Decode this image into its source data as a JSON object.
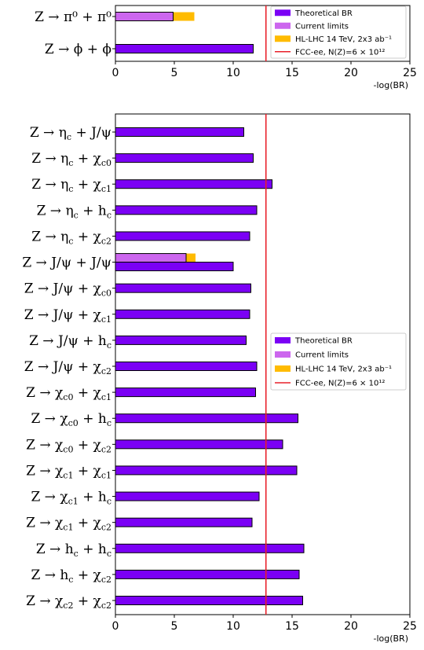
{
  "colors": {
    "theoretical": "#7b00f5",
    "current": "#cc66ee",
    "hl_lhc": "#ffbb00",
    "fcc": "#e8202a"
  },
  "chart_data": [
    {
      "type": "bar",
      "orientation": "horizontal",
      "xlabel": "-log(BR)",
      "xlim": [
        0,
        25
      ],
      "xticks": [
        0,
        5,
        10,
        15,
        20,
        25
      ],
      "fcc_line": 12.78,
      "legend": {
        "placement": "top-right",
        "items": [
          {
            "key": "theoretical",
            "label": "Theoretical BR"
          },
          {
            "key": "current",
            "label": "Current limits"
          },
          {
            "key": "hl_lhc",
            "label": "HL-LHC 14 TeV, 2x3 ab⁻¹"
          },
          {
            "key": "fcc",
            "label": "FCC-ee, N(Z)=6 × 10¹²"
          }
        ]
      },
      "categories": [
        "Z → π⁰ + π⁰",
        "Z → ϕ + ϕ"
      ],
      "series": [
        {
          "key": "theoretical",
          "values": [
            null,
            11.7
          ]
        },
        {
          "key": "current",
          "values": [
            4.9,
            null
          ]
        },
        {
          "key": "hl_lhc",
          "values": [
            6.7,
            null
          ]
        }
      ]
    },
    {
      "type": "bar",
      "orientation": "horizontal",
      "xlabel": "-log(BR)",
      "xlim": [
        0,
        25
      ],
      "xticks": [
        0,
        5,
        10,
        15,
        20,
        25
      ],
      "fcc_line": 12.78,
      "legend": {
        "placement": "center-right",
        "items": [
          {
            "key": "theoretical",
            "label": "Theoretical BR"
          },
          {
            "key": "current",
            "label": "Current limits"
          },
          {
            "key": "hl_lhc",
            "label": "HL-LHC 14 TeV, 2x3 ab⁻¹"
          },
          {
            "key": "fcc",
            "label": "FCC-ee, N(Z)=6 × 10¹²"
          }
        ]
      },
      "categories": [
        "Z → ηc + J/ψ",
        "Z → ηc + χc0",
        "Z → ηc + χc1",
        "Z → ηc + hc",
        "Z → ηc + χc2",
        "Z → J/ψ + J/ψ",
        "Z → J/ψ + χc0",
        "Z → J/ψ + χc1",
        "Z → J/ψ + hc",
        "Z → J/ψ + χc2",
        "Z → χc0 + χc1",
        "Z → χc0 + hc",
        "Z → χc0 + χc2",
        "Z → χc1 + χc1",
        "Z → χc1 + hc",
        "Z → χc1 + χc2",
        "Z → hc + hc",
        "Z → hc + χc2",
        "Z → χc2 + χc2"
      ],
      "series": [
        {
          "key": "theoretical",
          "values": [
            10.9,
            11.7,
            13.3,
            12.0,
            11.4,
            10.0,
            11.5,
            11.4,
            11.1,
            12.0,
            11.9,
            15.5,
            14.2,
            15.4,
            12.2,
            11.6,
            16.0,
            15.6,
            15.9
          ]
        },
        {
          "key": "current",
          "values": [
            null,
            null,
            null,
            null,
            null,
            6.0,
            null,
            null,
            null,
            null,
            null,
            null,
            null,
            null,
            null,
            null,
            null,
            null,
            null
          ]
        },
        {
          "key": "hl_lhc",
          "values": [
            null,
            null,
            null,
            null,
            null,
            6.8,
            null,
            null,
            null,
            null,
            null,
            null,
            null,
            null,
            null,
            null,
            null,
            null,
            null
          ]
        }
      ]
    }
  ]
}
